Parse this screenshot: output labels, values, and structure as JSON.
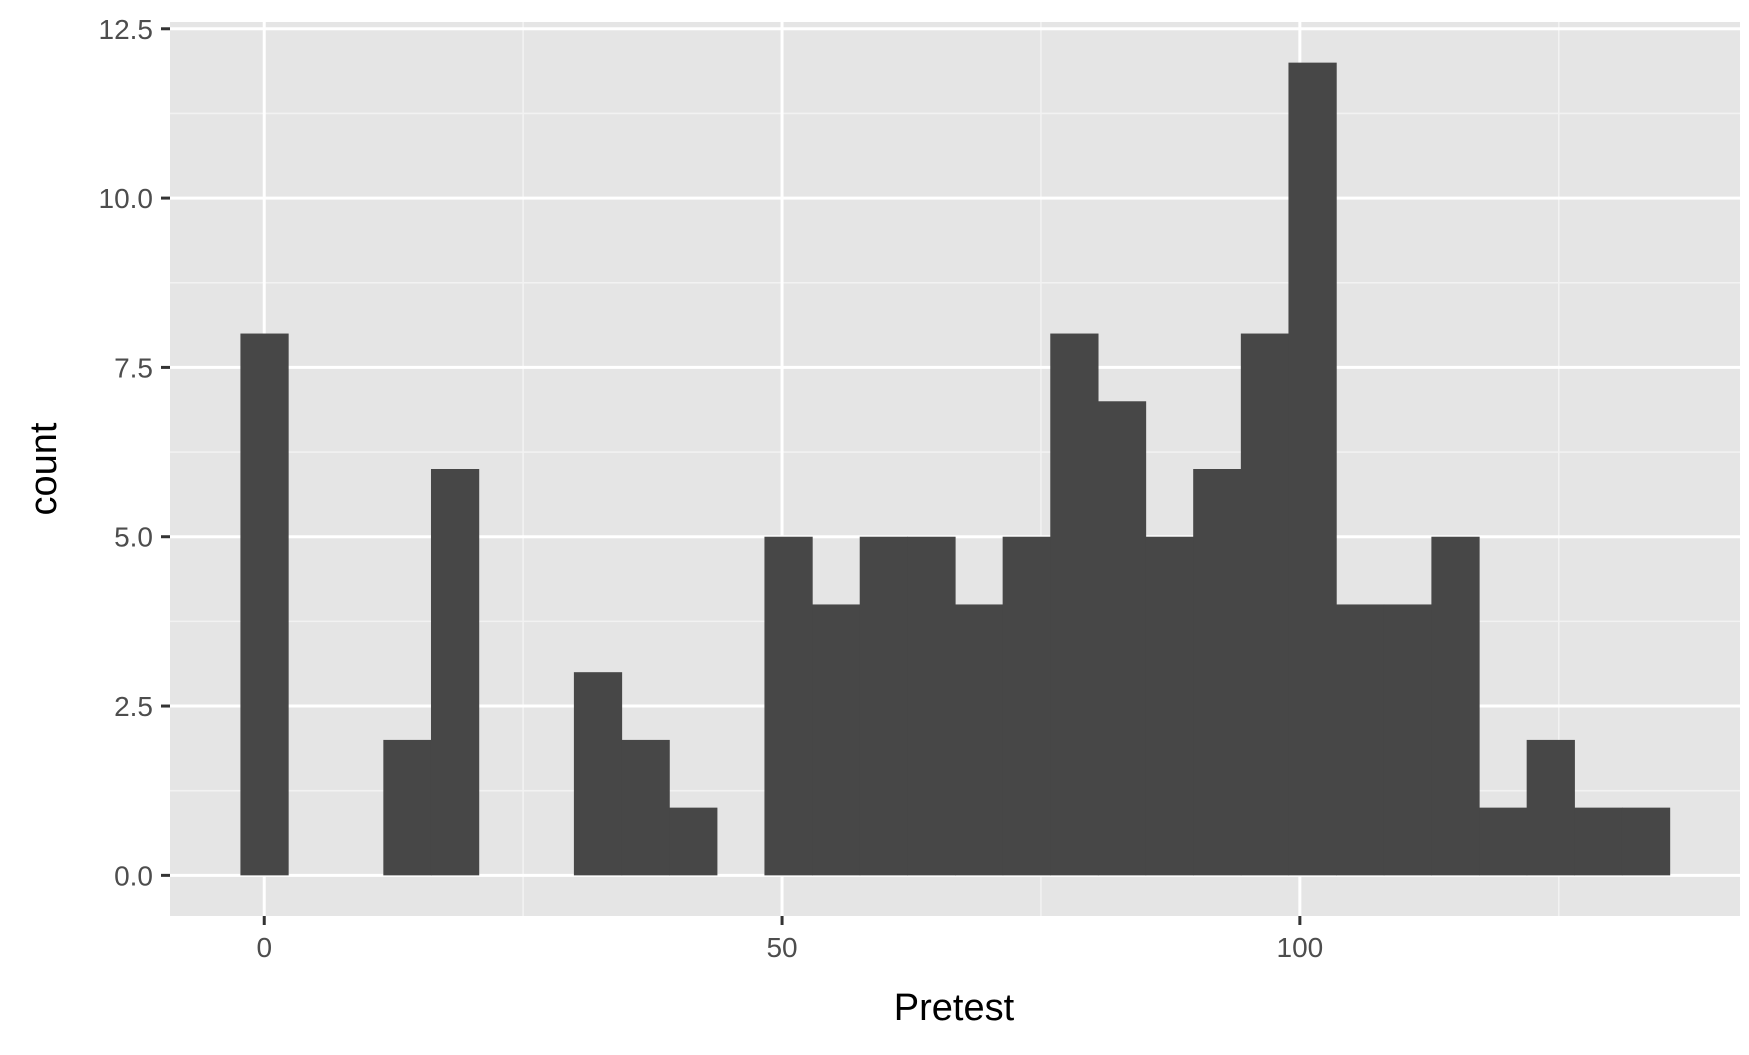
{
  "chart_data": {
    "type": "bar",
    "subtype": "histogram",
    "title": "",
    "xlabel": "Pretest",
    "ylabel": "count",
    "bin_width": 4.6,
    "bins": [
      {
        "x0": -2.3,
        "x1": 2.3,
        "count": 8
      },
      {
        "x0": 2.3,
        "x1": 6.9,
        "count": 0
      },
      {
        "x0": 6.9,
        "x1": 11.5,
        "count": 0
      },
      {
        "x0": 11.5,
        "x1": 16.1,
        "count": 2
      },
      {
        "x0": 16.1,
        "x1": 20.7,
        "count": 6
      },
      {
        "x0": 20.7,
        "x1": 25.3,
        "count": 0
      },
      {
        "x0": 25.3,
        "x1": 29.9,
        "count": 0
      },
      {
        "x0": 29.9,
        "x1": 34.5,
        "count": 3
      },
      {
        "x0": 34.5,
        "x1": 39.1,
        "count": 2
      },
      {
        "x0": 39.1,
        "x1": 43.7,
        "count": 1
      },
      {
        "x0": 43.7,
        "x1": 48.3,
        "count": 0
      },
      {
        "x0": 48.3,
        "x1": 52.9,
        "count": 5
      },
      {
        "x0": 52.9,
        "x1": 57.5,
        "count": 4
      },
      {
        "x0": 57.5,
        "x1": 62.1,
        "count": 5
      },
      {
        "x0": 62.1,
        "x1": 66.7,
        "count": 5
      },
      {
        "x0": 66.7,
        "x1": 71.3,
        "count": 4
      },
      {
        "x0": 71.3,
        "x1": 75.9,
        "count": 5
      },
      {
        "x0": 75.9,
        "x1": 80.5,
        "count": 8
      },
      {
        "x0": 80.5,
        "x1": 85.1,
        "count": 7
      },
      {
        "x0": 85.1,
        "x1": 89.7,
        "count": 5
      },
      {
        "x0": 89.7,
        "x1": 94.3,
        "count": 6
      },
      {
        "x0": 94.3,
        "x1": 98.9,
        "count": 8
      },
      {
        "x0": 98.9,
        "x1": 103.5,
        "count": 12
      },
      {
        "x0": 103.5,
        "x1": 108.1,
        "count": 4
      },
      {
        "x0": 108.1,
        "x1": 112.7,
        "count": 4
      },
      {
        "x0": 112.7,
        "x1": 117.3,
        "count": 5
      },
      {
        "x0": 117.3,
        "x1": 121.9,
        "count": 1
      },
      {
        "x0": 121.9,
        "x1": 126.5,
        "count": 2
      },
      {
        "x0": 126.5,
        "x1": 131.1,
        "count": 1
      },
      {
        "x0": 131.1,
        "x1": 135.7,
        "count": 1
      }
    ],
    "x_ticks": [
      {
        "value": 0,
        "label": "0"
      },
      {
        "value": 50,
        "label": "50"
      },
      {
        "value": 100,
        "label": "100"
      }
    ],
    "y_ticks": [
      {
        "value": 0,
        "label": "0.0"
      },
      {
        "value": 2.5,
        "label": "2.5"
      },
      {
        "value": 5,
        "label": "5.0"
      },
      {
        "value": 7.5,
        "label": "7.5"
      },
      {
        "value": 10,
        "label": "10.0"
      },
      {
        "value": 12.5,
        "label": "12.5"
      }
    ],
    "x_minor_ticks": [
      25,
      75,
      125
    ],
    "y_minor_ticks": [
      1.25,
      3.75,
      6.25,
      8.75,
      11.25
    ],
    "xlim": [
      -9.1,
      142.5
    ],
    "ylim": [
      -0.6,
      12.6
    ],
    "grid": true,
    "legend": "none",
    "colors": {
      "panel_background": "#e5e5e5",
      "grid_major": "#ffffff",
      "grid_minor": "#f2f2f2",
      "bar_fill": "#474747",
      "tick_label": "#4d4d4d",
      "tick_mark": "#333333",
      "axis_title": "#000000"
    }
  }
}
